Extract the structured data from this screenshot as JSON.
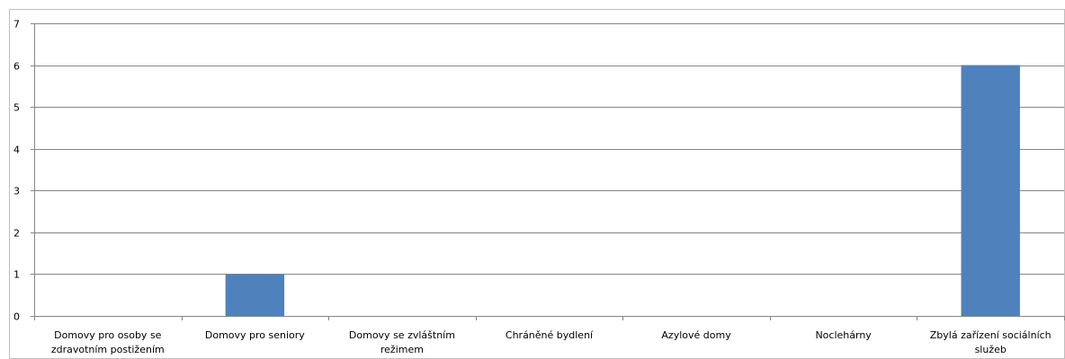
{
  "chart_data": {
    "type": "bar",
    "title": "",
    "xlabel": "",
    "ylabel": "",
    "ylim": [
      0,
      7
    ],
    "yticks": [
      "0",
      "1",
      "2",
      "3",
      "4",
      "5",
      "6",
      "7"
    ],
    "grid": true,
    "legend": "none",
    "categories": [
      [
        "Domovy pro osoby se",
        "zdravotním postižením"
      ],
      [
        "Domovy pro seniory"
      ],
      [
        "Domovy se zvláštním",
        "režimem"
      ],
      [
        "Chráněné bydlení"
      ],
      [
        "Azylové domy"
      ],
      [
        "Noclehárny"
      ],
      [
        "Zbylá zařízení sociálních",
        "služeb"
      ]
    ],
    "values": [
      0,
      1,
      0,
      0,
      0,
      0,
      6
    ],
    "bar_color": "#4F81BD"
  }
}
